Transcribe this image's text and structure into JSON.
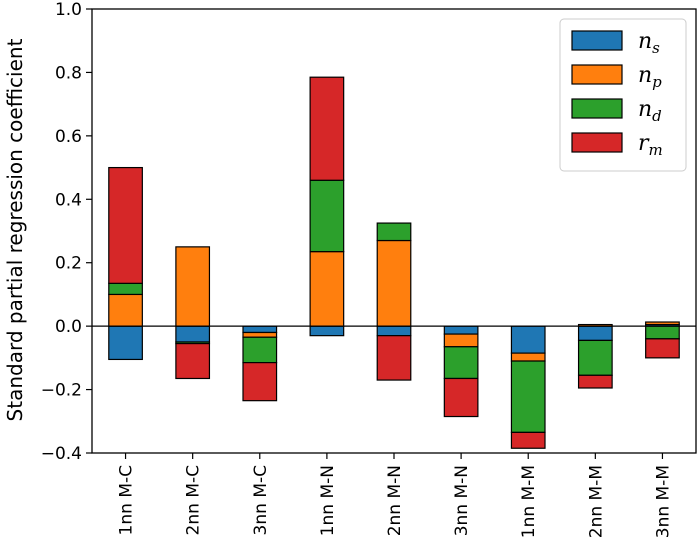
{
  "chart_data": {
    "type": "bar",
    "stacked": true,
    "stacking": "diverging",
    "title": "",
    "xlabel": "",
    "ylabel": "Standard partial regression coefficient",
    "ylim": [
      -0.4,
      1.0
    ],
    "yticks": [
      -0.4,
      -0.2,
      0.0,
      0.2,
      0.4,
      0.6,
      0.8,
      1.0
    ],
    "ytick_labels": [
      "−0.4",
      "−0.2",
      "0.0",
      "0.2",
      "0.4",
      "0.6",
      "0.8",
      "1.0"
    ],
    "grid": false,
    "zero_line": true,
    "legend_position": "top-right",
    "categories": [
      "1nn M-C",
      "2nn M-C",
      "3nn M-C",
      "1nn M-N",
      "2nn M-N",
      "3nn M-N",
      "1nn M-M",
      "2nn M-M",
      "3nn M-M"
    ],
    "series": [
      {
        "name": "n_s",
        "legend_base": "n",
        "legend_sub": "s",
        "color": "#1f77b4",
        "values": [
          -0.105,
          -0.05,
          -0.02,
          -0.03,
          -0.03,
          -0.025,
          -0.085,
          -0.045,
          0.005
        ]
      },
      {
        "name": "n_p",
        "legend_base": "n",
        "legend_sub": "p",
        "color": "#ff7f0e",
        "values": [
          0.1,
          0.25,
          -0.015,
          0.235,
          0.27,
          -0.04,
          -0.025,
          0.005,
          0.008
        ]
      },
      {
        "name": "n_d",
        "legend_base": "n",
        "legend_sub": "d",
        "color": "#2ca02c",
        "values": [
          0.035,
          -0.005,
          -0.08,
          0.225,
          0.055,
          -0.1,
          -0.225,
          -0.11,
          -0.04
        ]
      },
      {
        "name": "r_m",
        "legend_base": "r",
        "legend_sub": "m",
        "color": "#d62728",
        "values": [
          0.365,
          -0.11,
          -0.12,
          0.325,
          -0.14,
          -0.12,
          -0.05,
          -0.04,
          -0.06
        ]
      }
    ]
  }
}
